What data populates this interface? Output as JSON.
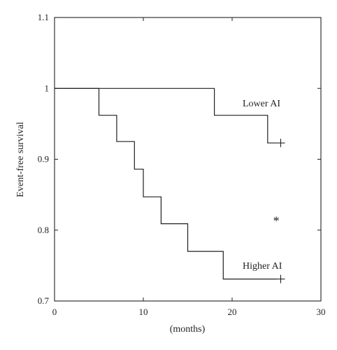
{
  "chart_data": {
    "type": "line",
    "title": "",
    "xlabel": "(months)",
    "ylabel": "Event-free survival",
    "xlim": [
      0,
      30
    ],
    "ylim": [
      0.7,
      1.1
    ],
    "x_ticks": [
      0,
      10,
      20,
      30
    ],
    "y_ticks": [
      0.7,
      0.8,
      0.9,
      1,
      1.1
    ],
    "x_tick_labels": [
      "0",
      "10",
      "20",
      "30"
    ],
    "y_tick_labels": [
      "0.7",
      "0.8",
      "0.9",
      "1",
      "1.1"
    ],
    "grid": false,
    "series": [
      {
        "name": "Lower AI",
        "step": true,
        "points": [
          [
            0,
            1.0
          ],
          [
            18,
            1.0
          ],
          [
            18,
            0.962
          ],
          [
            24,
            0.962
          ],
          [
            24,
            0.923
          ],
          [
            25,
            0.923
          ]
        ],
        "censor": [
          [
            25,
            0.923
          ]
        ]
      },
      {
        "name": "Higher AI",
        "step": true,
        "points": [
          [
            0,
            1.0
          ],
          [
            5,
            1.0
          ],
          [
            5,
            0.962
          ],
          [
            7,
            0.962
          ],
          [
            7,
            0.925
          ],
          [
            9,
            0.925
          ],
          [
            9,
            0.886
          ],
          [
            10,
            0.886
          ],
          [
            10,
            0.847
          ],
          [
            12,
            0.847
          ],
          [
            12,
            0.809
          ],
          [
            15,
            0.809
          ],
          [
            15,
            0.77
          ],
          [
            19,
            0.77
          ],
          [
            19,
            0.731
          ],
          [
            25,
            0.731
          ]
        ],
        "censor": [
          [
            25,
            0.731
          ]
        ]
      }
    ],
    "annotations": [
      {
        "text": "*",
        "x": 24.5,
        "y": 0.814
      }
    ]
  }
}
